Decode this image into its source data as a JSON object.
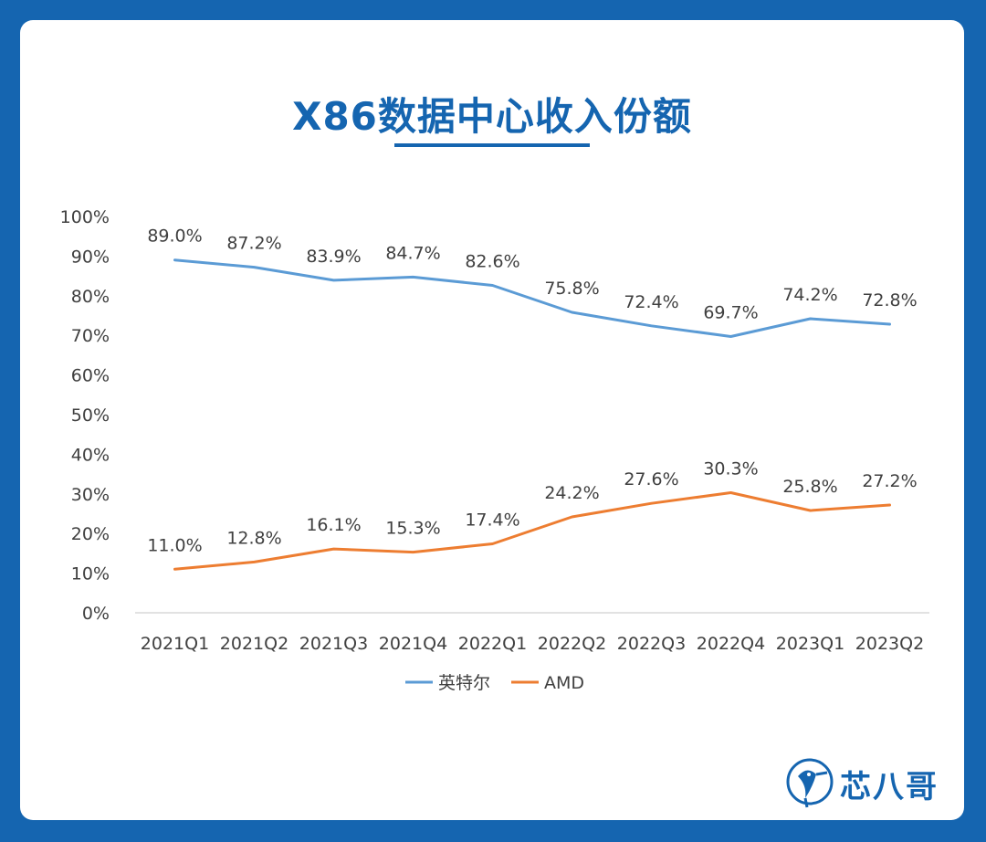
{
  "chart_data": {
    "type": "line",
    "title": "X86数据中心收入份额",
    "categories": [
      "2021Q1",
      "2021Q2",
      "2021Q3",
      "2021Q4",
      "2022Q1",
      "2022Q2",
      "2022Q3",
      "2022Q4",
      "2023Q1",
      "2023Q2"
    ],
    "series": [
      {
        "name": "英特尔",
        "color": "#5b9bd5",
        "values": [
          89.0,
          87.2,
          83.9,
          84.7,
          82.6,
          75.8,
          72.4,
          69.7,
          74.2,
          72.8
        ],
        "labels": [
          "89.0%",
          "87.2%",
          "83.9%",
          "84.7%",
          "82.6%",
          "75.8%",
          "72.4%",
          "69.7%",
          "74.2%",
          "72.8%"
        ]
      },
      {
        "name": "AMD",
        "color": "#ed7d31",
        "values": [
          11.0,
          12.8,
          16.1,
          15.3,
          17.4,
          24.2,
          27.6,
          30.3,
          25.8,
          27.2
        ],
        "labels": [
          "11.0%",
          "12.8%",
          "16.1%",
          "15.3%",
          "17.4%",
          "24.2%",
          "27.6%",
          "30.3%",
          "25.8%",
          "27.2%"
        ]
      }
    ],
    "yticks": [
      "0%",
      "10%",
      "20%",
      "30%",
      "40%",
      "50%",
      "60%",
      "70%",
      "80%",
      "90%",
      "100%"
    ],
    "ylim": [
      0,
      100
    ],
    "grid": false,
    "legend_position": "bottom"
  },
  "logo": {
    "text": "芯八哥"
  },
  "theme": {
    "brand": "#1565b0",
    "text": "#404040",
    "axis": "#d9d9d9"
  }
}
